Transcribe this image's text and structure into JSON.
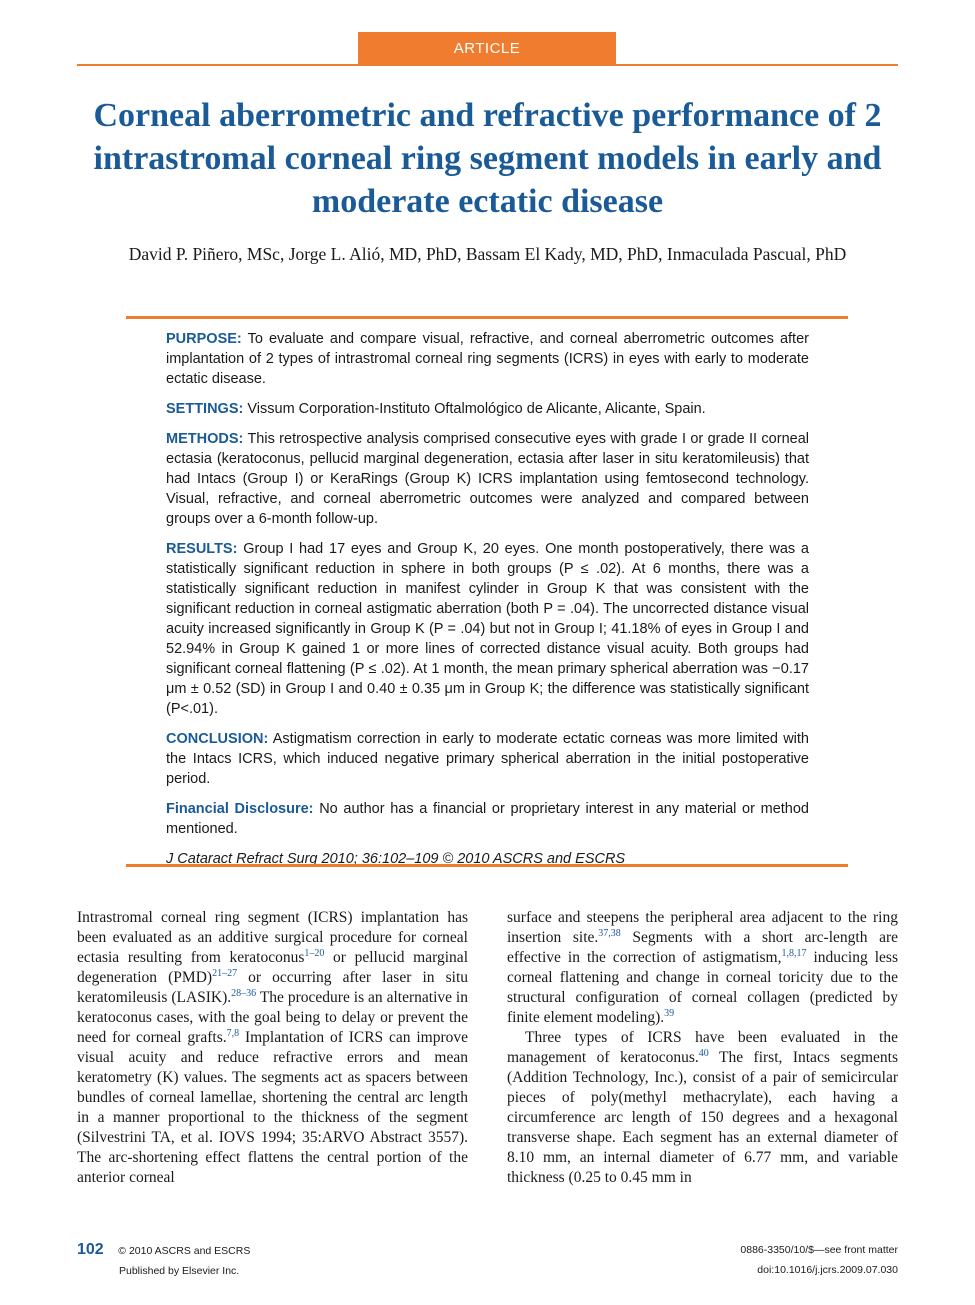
{
  "header": {
    "tab_label": "ARTICLE"
  },
  "article": {
    "title": "Corneal aberrometric and refractive performance of 2 intrastromal corneal ring segment models in early and moderate ectatic disease",
    "authors": "David P. Piñero, MSc, Jorge L. Alió, MD, PhD, Bassam El Kady, MD, PhD, Inmaculada Pascual, PhD"
  },
  "abstract": {
    "purpose_label": "PURPOSE:",
    "purpose": "To evaluate and compare visual, refractive, and corneal aberrometric outcomes after implantation of 2 types of intrastromal corneal ring segments (ICRS) in eyes with early to moderate ectatic disease.",
    "settings_label": "SETTINGS:",
    "settings": "Vissum Corporation-Instituto Oftalmológico de Alicante, Alicante, Spain.",
    "methods_label": "METHODS:",
    "methods": "This retrospective analysis comprised consecutive eyes with grade I or grade II corneal ectasia (keratoconus, pellucid marginal degeneration, ectasia after laser in situ keratomileusis) that had Intacs (Group I) or KeraRings (Group K) ICRS implantation using femtosecond technology. Visual, refractive, and corneal aberrometric outcomes were analyzed and compared between groups over a 6-month follow-up.",
    "results_label": "RESULTS:",
    "results": "Group I had 17 eyes and Group K, 20 eyes. One month postoperatively, there was a statistically significant reduction in sphere in both groups (P ≤ .02). At 6 months, there was a statistically significant reduction in manifest cylinder in Group K that was consistent with the significant reduction in corneal astigmatic aberration (both P = .04). The uncorrected distance visual acuity increased significantly in Group K (P = .04) but not in Group I; 41.18% of eyes in Group I and 52.94% in Group K gained 1 or more lines of corrected distance visual acuity. Both groups had significant corneal flattening (P ≤ .02). At 1 month, the mean primary spherical aberration was −0.17 μm ± 0.52 (SD) in Group I and 0.40 ± 0.35 μm in Group K; the difference was statistically significant (P<.01).",
    "conclusion_label": "CONCLUSION:",
    "conclusion": "Astigmatism correction in early to moderate ectatic corneas was more limited with the Intacs ICRS, which induced negative primary spherical aberration in the initial postoperative period.",
    "disclosure_label": "Financial Disclosure:",
    "disclosure": "No author has a financial or proprietary interest in any material or method mentioned.",
    "citation": "J Cataract Refract Surg 2010; 36:102–109 © 2010 ASCRS and ESCRS"
  },
  "body": {
    "col1": {
      "t1": "Intrastromal corneal ring segment (ICRS) implantation has been evaluated as an additive surgical procedure for corneal ectasia resulting from keratoconus",
      "r1": "1–20",
      "t2": " or pellucid marginal degeneration (PMD)",
      "r2": "21–27",
      "t3": " or occurring after laser in situ keratomileusis (LASIK).",
      "r3": "28–36",
      "t4": " The procedure is an alternative in keratoconus cases, with the goal being to delay or prevent the need for corneal grafts.",
      "r4": "7,8",
      "t5": " Implantation of ICRS can improve visual acuity and reduce refractive errors and mean keratometry (K) values. The segments act as spacers between bundles of corneal lamellae, shortening the central arc length in a manner proportional to the thickness of the segment (Silvestrini TA, et al. IOVS 1994; 35:ARVO Abstract 3557). The arc-shortening effect flattens the central portion of the anterior corneal"
    },
    "col2": {
      "t1": "surface and steepens the peripheral area adjacent to the ring insertion site.",
      "r1": "37,38",
      "t2": " Segments with a short arc-length are effective in the correction of astigmatism,",
      "r2": "1,8,17",
      "t3": " inducing less corneal flattening and change in corneal toricity due to the structural configuration of corneal collagen (predicted by finite element modeling).",
      "r3": "39",
      "t4": "Three types of ICRS have been evaluated in the management of keratoconus.",
      "r4": "40",
      "t5": " The first, Intacs segments (Addition Technology, Inc.), consist of a pair of semicircular pieces of poly(methyl methacrylate), each having a circumference arc length of 150 degrees and a hexagonal transverse shape. Each segment has an external diameter of 8.10 mm, an internal diameter of 6.77 mm, and variable thickness (0.25 to 0.45 mm in"
    }
  },
  "footer": {
    "page_number": "102",
    "copyright": "© 2010 ASCRS and ESCRS",
    "publisher": "Published by Elsevier Inc.",
    "issn": "0886-3350/10/$—see front matter",
    "doi": "doi:10.1016/j.jcrs.2009.07.030"
  },
  "colors": {
    "accent_orange": "#f07c30",
    "title_blue": "#1a5a96"
  }
}
